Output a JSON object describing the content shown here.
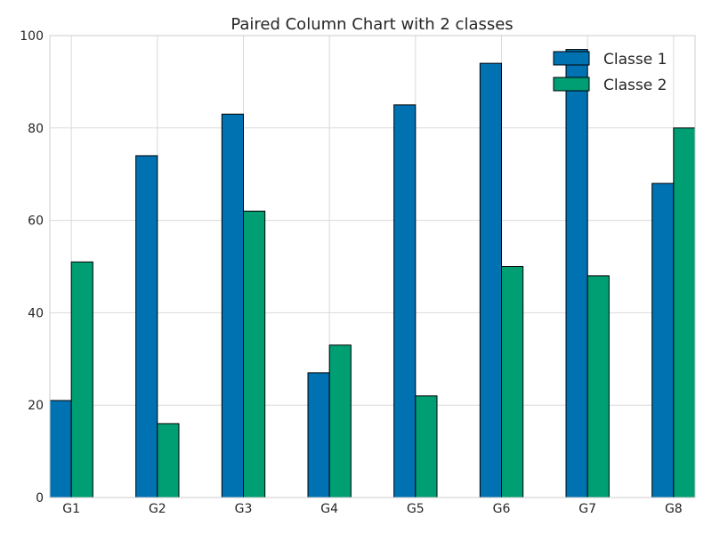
{
  "chart_data": {
    "type": "bar",
    "title": "Paired Column Chart with 2 classes",
    "xlabel": "",
    "ylabel": "",
    "categories": [
      "G1",
      "G2",
      "G3",
      "G4",
      "G5",
      "G6",
      "G7",
      "G8"
    ],
    "series": [
      {
        "name": "Classe 1",
        "color": "#0072B2",
        "values": [
          21,
          74,
          83,
          27,
          85,
          94,
          97,
          68
        ]
      },
      {
        "name": "Classe 2",
        "color": "#009E73",
        "values": [
          51,
          16,
          62,
          33,
          22,
          50,
          48,
          80
        ]
      }
    ],
    "ylim": [
      0,
      100
    ],
    "yticks": [
      0,
      20,
      40,
      60,
      80,
      100
    ],
    "grid": true,
    "legend_position": "top-right"
  }
}
